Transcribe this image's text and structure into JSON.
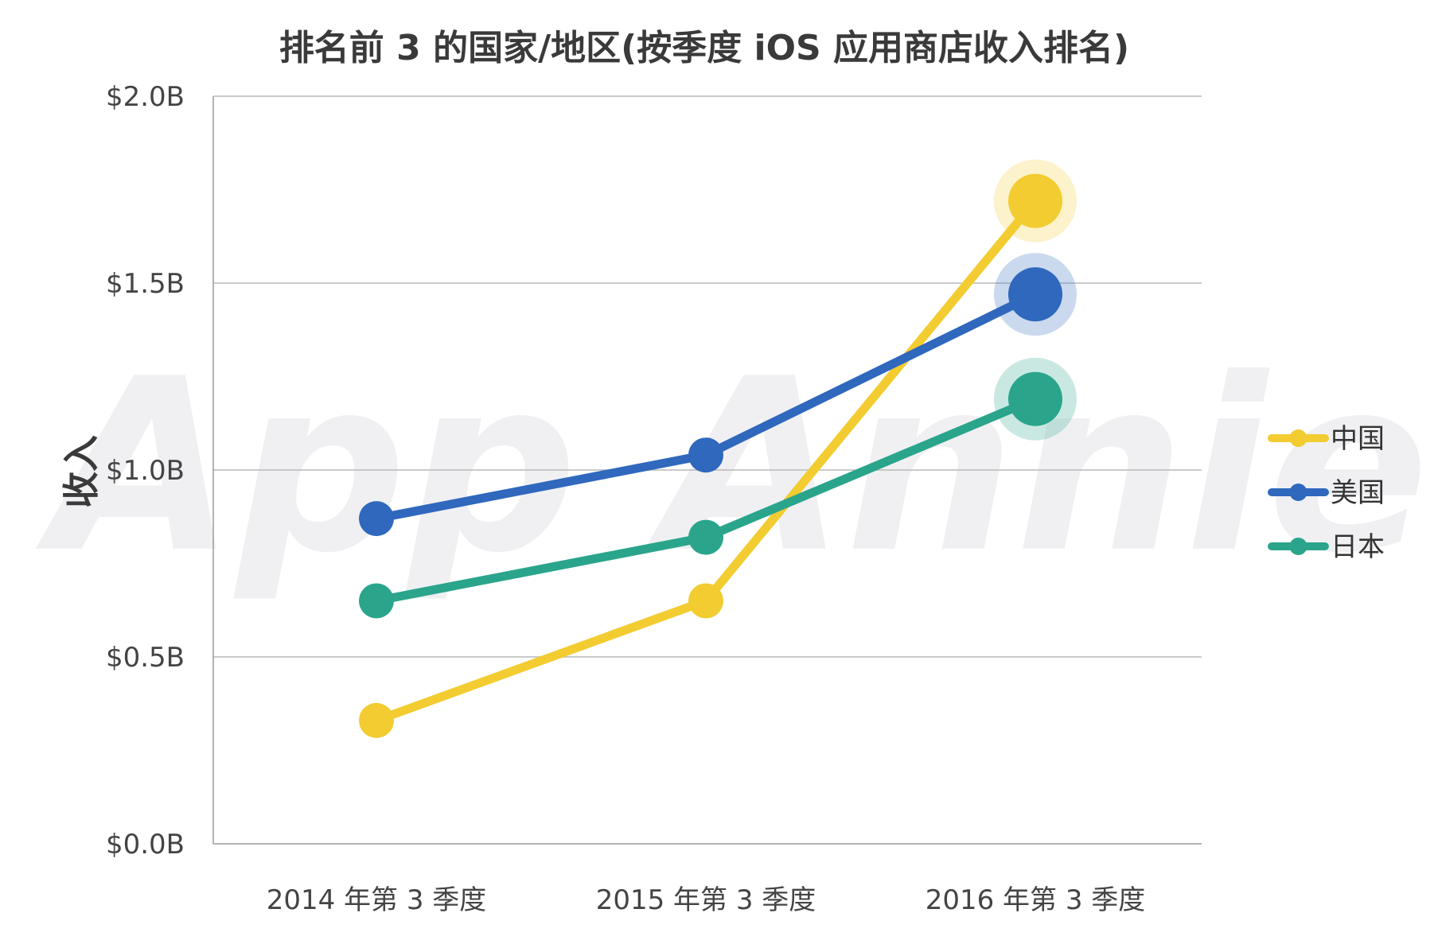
{
  "chart_data": {
    "type": "line",
    "title": "排名前 3 的国家/地区(按季度 iOS 应用商店收入排名)",
    "xlabel": "",
    "ylabel": "收入",
    "watermark": "App Annie",
    "categories": [
      "2014 年第 3 季度",
      "2015 年第 3 季度",
      "2016 年第 3 季度"
    ],
    "ylim": [
      0,
      2.0
    ],
    "yticks": [
      0,
      0.5,
      1.0,
      1.5,
      2.0
    ],
    "ytick_labels": [
      "$0.0B",
      "$0.5B",
      "$1.0B",
      "$1.5B",
      "$2.0B"
    ],
    "grid": true,
    "legend_position": "right",
    "series": [
      {
        "name": "中国",
        "color": "#f2cc30",
        "values": [
          0.33,
          0.65,
          1.72
        ]
      },
      {
        "name": "美国",
        "color": "#2f68bd",
        "values": [
          0.87,
          1.04,
          1.47
        ]
      },
      {
        "name": "日本",
        "color": "#2aa58b",
        "values": [
          0.65,
          0.82,
          1.19
        ]
      }
    ]
  }
}
